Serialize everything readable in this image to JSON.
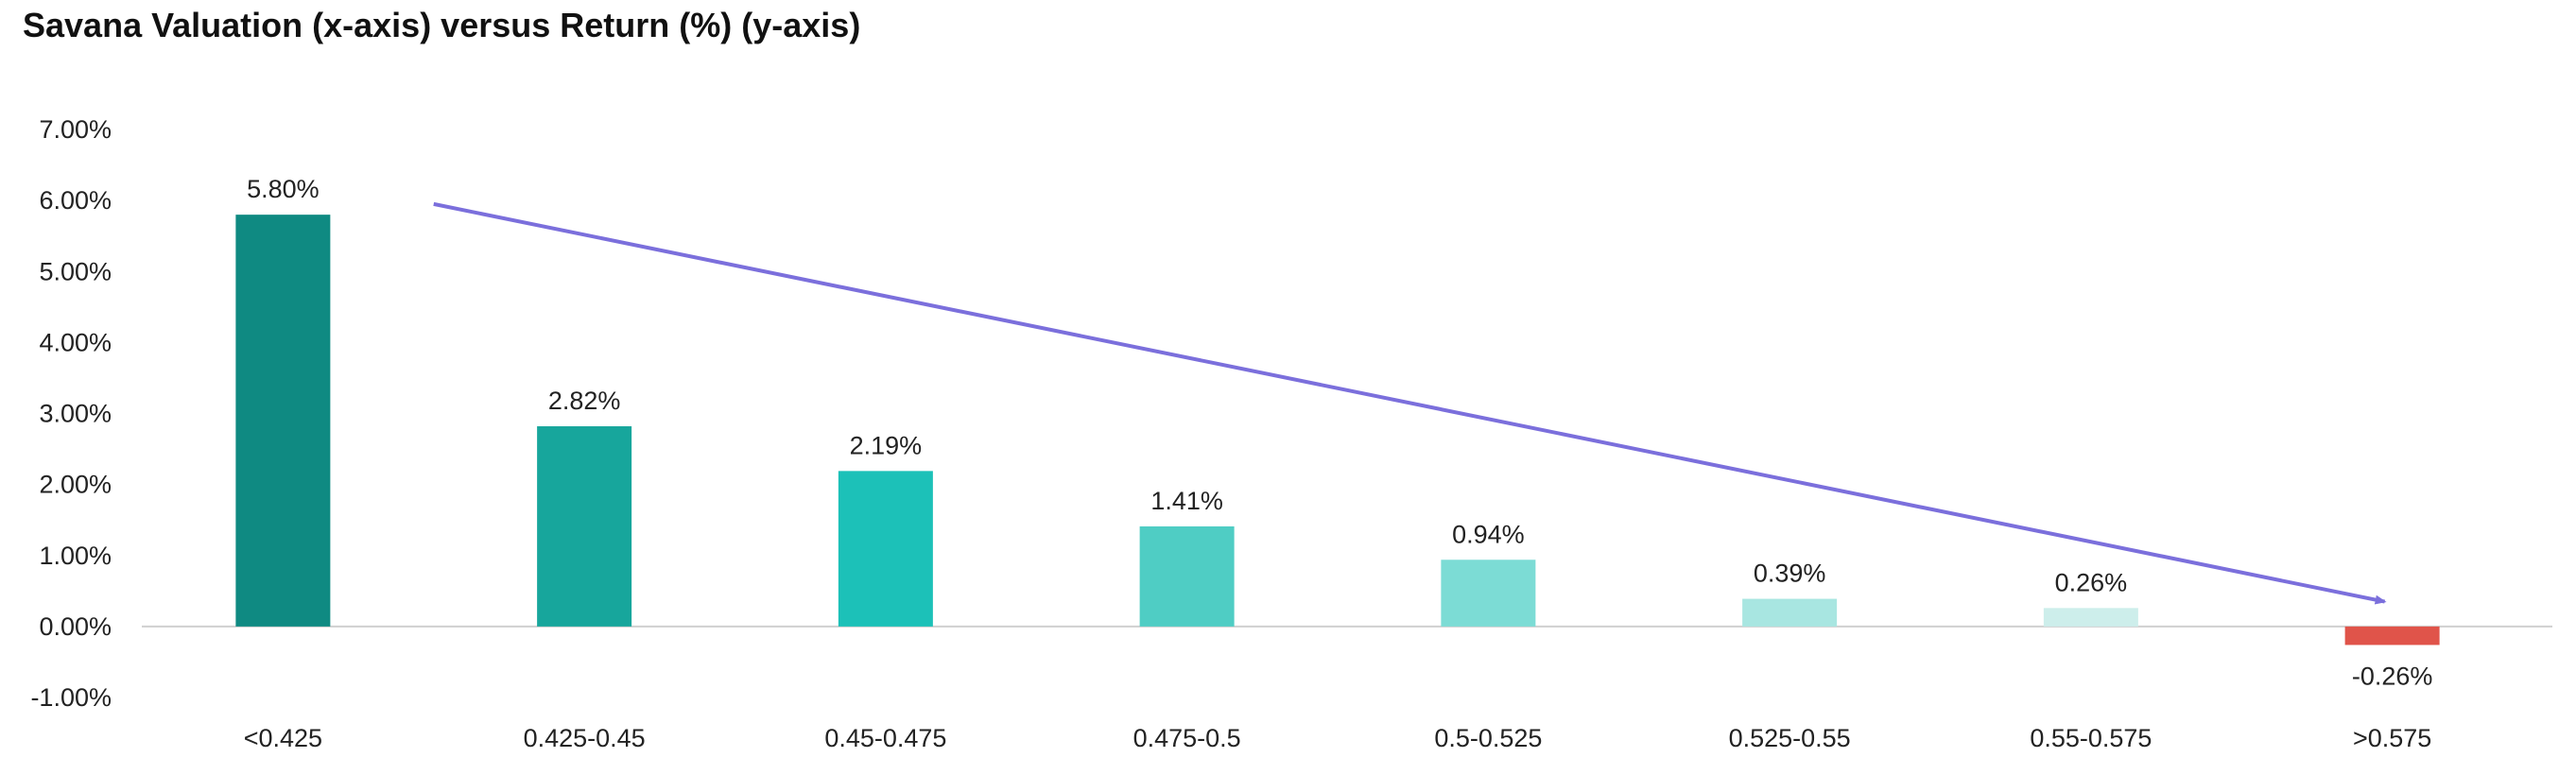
{
  "chart_data": {
    "type": "bar",
    "title": "Savana Valuation (x-axis) versus Return (%) (y-axis)",
    "xlabel": "",
    "ylabel": "",
    "categories": [
      "<0.425",
      "0.425-0.45",
      "0.45-0.475",
      "0.475-0.5",
      "0.5-0.525",
      "0.525-0.55",
      "0.55-0.575",
      ">0.575"
    ],
    "values": [
      5.8,
      2.82,
      2.19,
      1.41,
      0.94,
      0.39,
      0.26,
      -0.26
    ],
    "data_labels": [
      "5.80%",
      "2.82%",
      "2.19%",
      "1.41%",
      "0.94%",
      "0.39%",
      "0.26%",
      "-0.26%"
    ],
    "bar_colors": [
      "#0f8a82",
      "#17a69c",
      "#1cc1b8",
      "#4fcdc4",
      "#7cdcd5",
      "#a8e6e1",
      "#cdeeeb",
      "#e0544a"
    ],
    "ylim": [
      -1.0,
      7.0
    ],
    "yticks": [
      7.0,
      6.0,
      5.0,
      4.0,
      3.0,
      2.0,
      1.0,
      0.0,
      -1.0
    ],
    "ytick_labels": [
      "7.00%",
      "6.00%",
      "5.00%",
      "4.00%",
      "3.00%",
      "2.00%",
      "1.00%",
      "0.00%",
      "-1.00%"
    ],
    "grid": false,
    "legend": "none",
    "trend_arrow": {
      "color": "#7b6fdc",
      "from": {
        "category_index": 0.5,
        "value": 5.95
      },
      "to": {
        "category_index": 7.0,
        "value": 0.35
      }
    }
  }
}
